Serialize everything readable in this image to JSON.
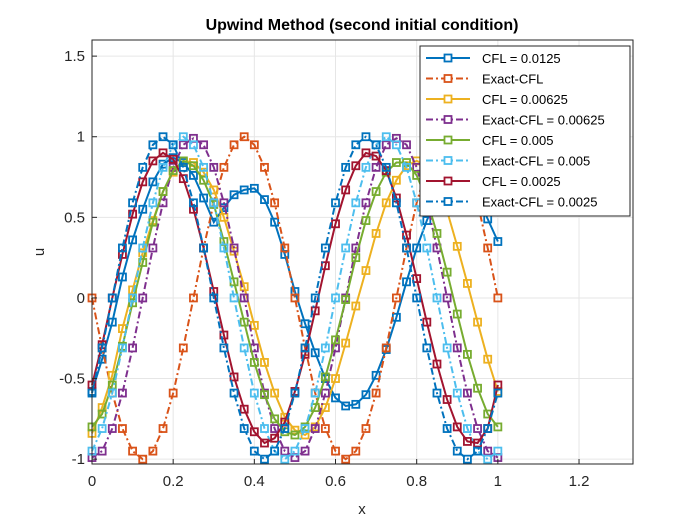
{
  "chart_data": {
    "type": "line",
    "title": "Upwind Method (second initial condition)",
    "xlabel": "x",
    "ylabel": "u",
    "xlim": [
      0,
      1.333
    ],
    "ylim": [
      -1.03,
      1.6
    ],
    "xticks": [
      0,
      0.2,
      0.4,
      0.6,
      0.8,
      1,
      1.2
    ],
    "xtick_labels": [
      "0",
      "0.2",
      "0.4",
      "0.6",
      "0.8",
      "1",
      "1.2"
    ],
    "yticks": [
      -1,
      -0.5,
      0,
      0.5,
      1,
      1.5
    ],
    "ytick_labels": [
      "-1",
      "-0.5",
      "0",
      "0.5",
      "1",
      "1.5"
    ],
    "grid": true,
    "legend_position": "top-right",
    "x": [
      0,
      0.025,
      0.05,
      0.075,
      0.1,
      0.125,
      0.15,
      0.175,
      0.2,
      0.225,
      0.25,
      0.275,
      0.3,
      0.325,
      0.35,
      0.375,
      0.4,
      0.425,
      0.45,
      0.475,
      0.5,
      0.525,
      0.55,
      0.575,
      0.6,
      0.625,
      0.65,
      0.675,
      0.7,
      0.725,
      0.75,
      0.775,
      0.8,
      0.825,
      0.85,
      0.875,
      0.9,
      0.925,
      0.95,
      0.975,
      1
    ],
    "series": [
      {
        "name": "CFL = 0.0125",
        "color": "#0072BD",
        "dash": "solid",
        "values": [
          -0.58,
          -0.38,
          -0.15,
          0.13,
          0.36,
          0.55,
          0.72,
          0.83,
          0.87,
          0.84,
          0.76,
          0.62,
          0.47,
          0.56,
          0.64,
          0.67,
          0.68,
          0.61,
          0.47,
          0.27,
          0.04,
          -0.16,
          -0.34,
          -0.5,
          -0.62,
          -0.67,
          -0.66,
          -0.6,
          -0.48,
          -0.32,
          -0.12,
          0.1,
          0.31,
          0.48,
          0.63,
          0.71,
          0.73,
          0.71,
          0.62,
          0.49,
          0.35
        ]
      },
      {
        "name": "Exact-CFL",
        "color": "#D95319",
        "dash": "dashdot",
        "values": [
          0,
          -0.31,
          -0.59,
          -0.81,
          -0.95,
          -1.0,
          -0.95,
          -0.81,
          -0.59,
          -0.31,
          0,
          0.31,
          0.59,
          0.81,
          0.95,
          1.0,
          0.95,
          0.81,
          0.59,
          0.31,
          0,
          -0.31,
          -0.59,
          -0.81,
          -0.95,
          -1.0,
          -0.95,
          -0.81,
          -0.59,
          -0.31,
          0,
          0.31,
          0.59,
          0.81,
          0.95,
          1.0,
          0.95,
          0.81,
          0.59,
          0.31,
          0
        ]
      },
      {
        "name": "CFL = 0.00625",
        "color": "#EDB120",
        "dash": "solid",
        "values": [
          -0.84,
          -0.68,
          -0.48,
          -0.19,
          0.05,
          0.28,
          0.48,
          0.66,
          0.78,
          0.85,
          0.84,
          0.78,
          0.67,
          0.5,
          0.29,
          0.07,
          -0.17,
          -0.4,
          -0.59,
          -0.74,
          -0.82,
          -0.85,
          -0.8,
          -0.68,
          -0.5,
          -0.28,
          -0.05,
          0.17,
          0.4,
          0.59,
          0.73,
          0.82,
          0.85,
          0.82,
          0.71,
          0.54,
          0.32,
          0.09,
          -0.15,
          -0.38,
          -0.58
        ]
      },
      {
        "name": "Exact-CFL = 0.00625",
        "color": "#7E2F8E",
        "dash": "dashdot",
        "values": [
          -0.99,
          -0.95,
          -0.81,
          -0.59,
          -0.31,
          0,
          0.31,
          0.59,
          0.81,
          0.95,
          0.99,
          0.95,
          0.81,
          0.59,
          0.31,
          0,
          -0.31,
          -0.59,
          -0.81,
          -0.95,
          -0.99,
          -0.95,
          -0.81,
          -0.59,
          -0.31,
          0,
          0.31,
          0.59,
          0.81,
          0.95,
          0.99,
          0.95,
          0.81,
          0.59,
          0.31,
          0,
          -0.31,
          -0.59,
          -0.81,
          -0.95,
          -0.99
        ]
      },
      {
        "name": "CFL = 0.005",
        "color": "#77AC30",
        "dash": "solid",
        "values": [
          -0.8,
          -0.72,
          -0.54,
          -0.3,
          -0.03,
          0.22,
          0.47,
          0.66,
          0.79,
          0.85,
          0.82,
          0.73,
          0.58,
          0.35,
          0.1,
          -0.15,
          -0.4,
          -0.6,
          -0.75,
          -0.83,
          -0.85,
          -0.8,
          -0.68,
          -0.49,
          -0.26,
          -0.01,
          0.25,
          0.48,
          0.66,
          0.78,
          0.84,
          0.84,
          0.76,
          0.61,
          0.4,
          0.16,
          -0.1,
          -0.35,
          -0.56,
          -0.72,
          -0.8
        ]
      },
      {
        "name": "Exact-CFL = 0.005",
        "color": "#4DBEEE",
        "dash": "dashdot",
        "values": [
          -0.95,
          -0.81,
          -0.59,
          -0.31,
          0,
          0.31,
          0.59,
          0.81,
          0.95,
          1.0,
          0.95,
          0.81,
          0.59,
          0.31,
          0,
          -0.31,
          -0.59,
          -0.81,
          -0.95,
          -1.0,
          -0.95,
          -0.81,
          -0.59,
          -0.31,
          0,
          0.31,
          0.59,
          0.81,
          0.95,
          1.0,
          0.95,
          0.81,
          0.59,
          0.31,
          0,
          -0.31,
          -0.59,
          -0.81,
          -0.95,
          -1.0,
          -0.95
        ]
      },
      {
        "name": "CFL = 0.0025",
        "color": "#A2142F",
        "dash": "solid",
        "values": [
          -0.54,
          -0.29,
          0.0,
          0.27,
          0.52,
          0.72,
          0.85,
          0.9,
          0.86,
          0.74,
          0.55,
          0.31,
          0.04,
          -0.23,
          -0.49,
          -0.69,
          -0.83,
          -0.9,
          -0.87,
          -0.77,
          -0.58,
          -0.35,
          -0.08,
          0.2,
          0.46,
          0.67,
          0.82,
          0.9,
          0.88,
          0.79,
          0.62,
          0.39,
          0.12,
          -0.15,
          -0.41,
          -0.63,
          -0.8,
          -0.89,
          -0.9,
          -0.81,
          -0.54
        ]
      },
      {
        "name": "Exact-CFL = 0.0025",
        "color": "#0072BD",
        "dash": "dashdot",
        "values": [
          -0.59,
          -0.31,
          0,
          0.31,
          0.59,
          0.81,
          0.95,
          1.0,
          0.95,
          0.81,
          0.59,
          0.31,
          0,
          -0.31,
          -0.59,
          -0.81,
          -0.95,
          -1.0,
          -0.95,
          -0.81,
          -0.59,
          -0.31,
          0,
          0.31,
          0.59,
          0.81,
          0.95,
          1.0,
          0.95,
          0.81,
          0.59,
          0.31,
          0,
          -0.31,
          -0.59,
          -0.81,
          -0.95,
          -1.0,
          -0.95,
          -0.81,
          -0.59
        ]
      }
    ]
  }
}
